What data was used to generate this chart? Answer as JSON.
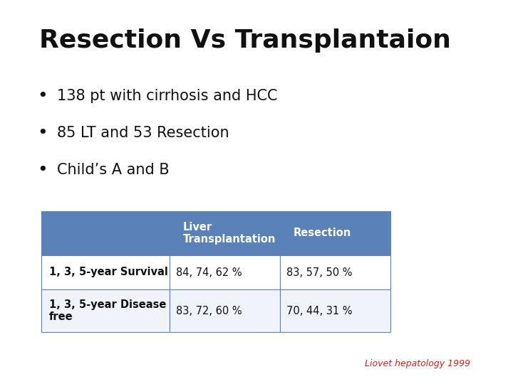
{
  "title": "Resection Vs Transplantaion",
  "bullets": [
    "138 pt with cirrhosis and HCC",
    "85 LT and 53 Resection",
    "Child’s A and B"
  ],
  "table_header_bg": "#5b82b8",
  "table_header_text_color": "#ffffff",
  "table_border_color": "#5b82b8",
  "table_col0_header": "",
  "table_col1_header": "Liver\nTransplantation",
  "table_col2_header": "Resection",
  "table_rows": [
    [
      "1, 3, 5-year Survival",
      "84, 74, 62 %",
      "83, 57, 50 %"
    ],
    [
      "1, 3, 5-year Disease\nfree",
      "83, 72, 60 %",
      "70, 44, 31 %"
    ]
  ],
  "footnote": "Liovet hepatology 1999",
  "footnote_color": "#cc2222",
  "background_color": "#ffffff",
  "title_fontsize": 26,
  "bullet_fontsize": 15,
  "table_header_fontsize": 10.5,
  "table_cell_fontsize": 10.5,
  "footnote_fontsize": 9
}
